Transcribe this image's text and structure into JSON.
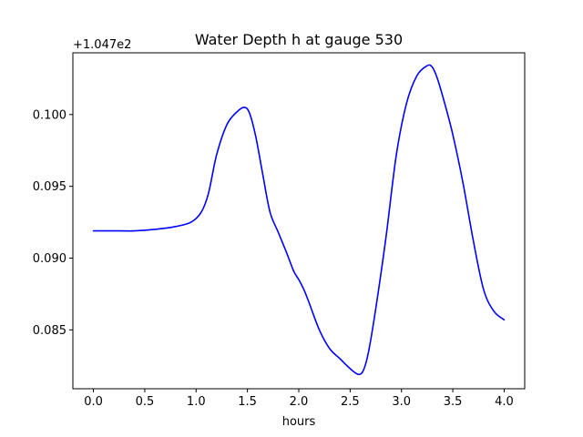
{
  "chart_data": {
    "type": "line",
    "title": "Water Depth h at gauge 530",
    "xlabel": "hours",
    "ylabel": "",
    "offset_text": "+1.047e2",
    "xlim": [
      -0.2,
      4.2
    ],
    "ylim": [
      0.0809,
      0.1043
    ],
    "xticks": [
      0.0,
      0.5,
      1.0,
      1.5,
      2.0,
      2.5,
      3.0,
      3.5,
      4.0
    ],
    "xtick_labels": [
      "0.0",
      "0.5",
      "1.0",
      "1.5",
      "2.0",
      "2.5",
      "3.0",
      "3.5",
      "4.0"
    ],
    "yticks": [
      0.085,
      0.09,
      0.095,
      0.1
    ],
    "ytick_labels": [
      "0.085",
      "0.090",
      "0.095",
      "0.100"
    ],
    "grid": false,
    "series": [
      {
        "color": "#0000ff",
        "x": [
          0.0,
          0.2,
          0.4,
          0.6,
          0.8,
          0.95,
          1.05,
          1.12,
          1.2,
          1.3,
          1.4,
          1.47,
          1.52,
          1.58,
          1.65,
          1.72,
          1.8,
          1.88,
          1.95,
          2.0,
          2.05,
          2.1,
          2.2,
          2.3,
          2.4,
          2.5,
          2.58,
          2.63,
          2.68,
          2.75,
          2.85,
          2.95,
          3.05,
          3.15,
          3.25,
          3.3,
          3.35,
          3.42,
          3.5,
          3.6,
          3.7,
          3.8,
          3.9,
          4.0
        ],
        "y": [
          0.0919,
          0.0919,
          0.0919,
          0.092,
          0.0922,
          0.0925,
          0.0932,
          0.0945,
          0.0972,
          0.0993,
          0.1002,
          0.1005,
          0.1001,
          0.0985,
          0.0958,
          0.0932,
          0.0918,
          0.0904,
          0.0891,
          0.0885,
          0.0878,
          0.0869,
          0.085,
          0.0837,
          0.083,
          0.0823,
          0.0819,
          0.0822,
          0.0835,
          0.0865,
          0.0915,
          0.0972,
          0.1008,
          0.1027,
          0.1034,
          0.1033,
          0.1025,
          0.1008,
          0.0986,
          0.0952,
          0.0912,
          0.0878,
          0.0863,
          0.0857
        ]
      }
    ]
  }
}
